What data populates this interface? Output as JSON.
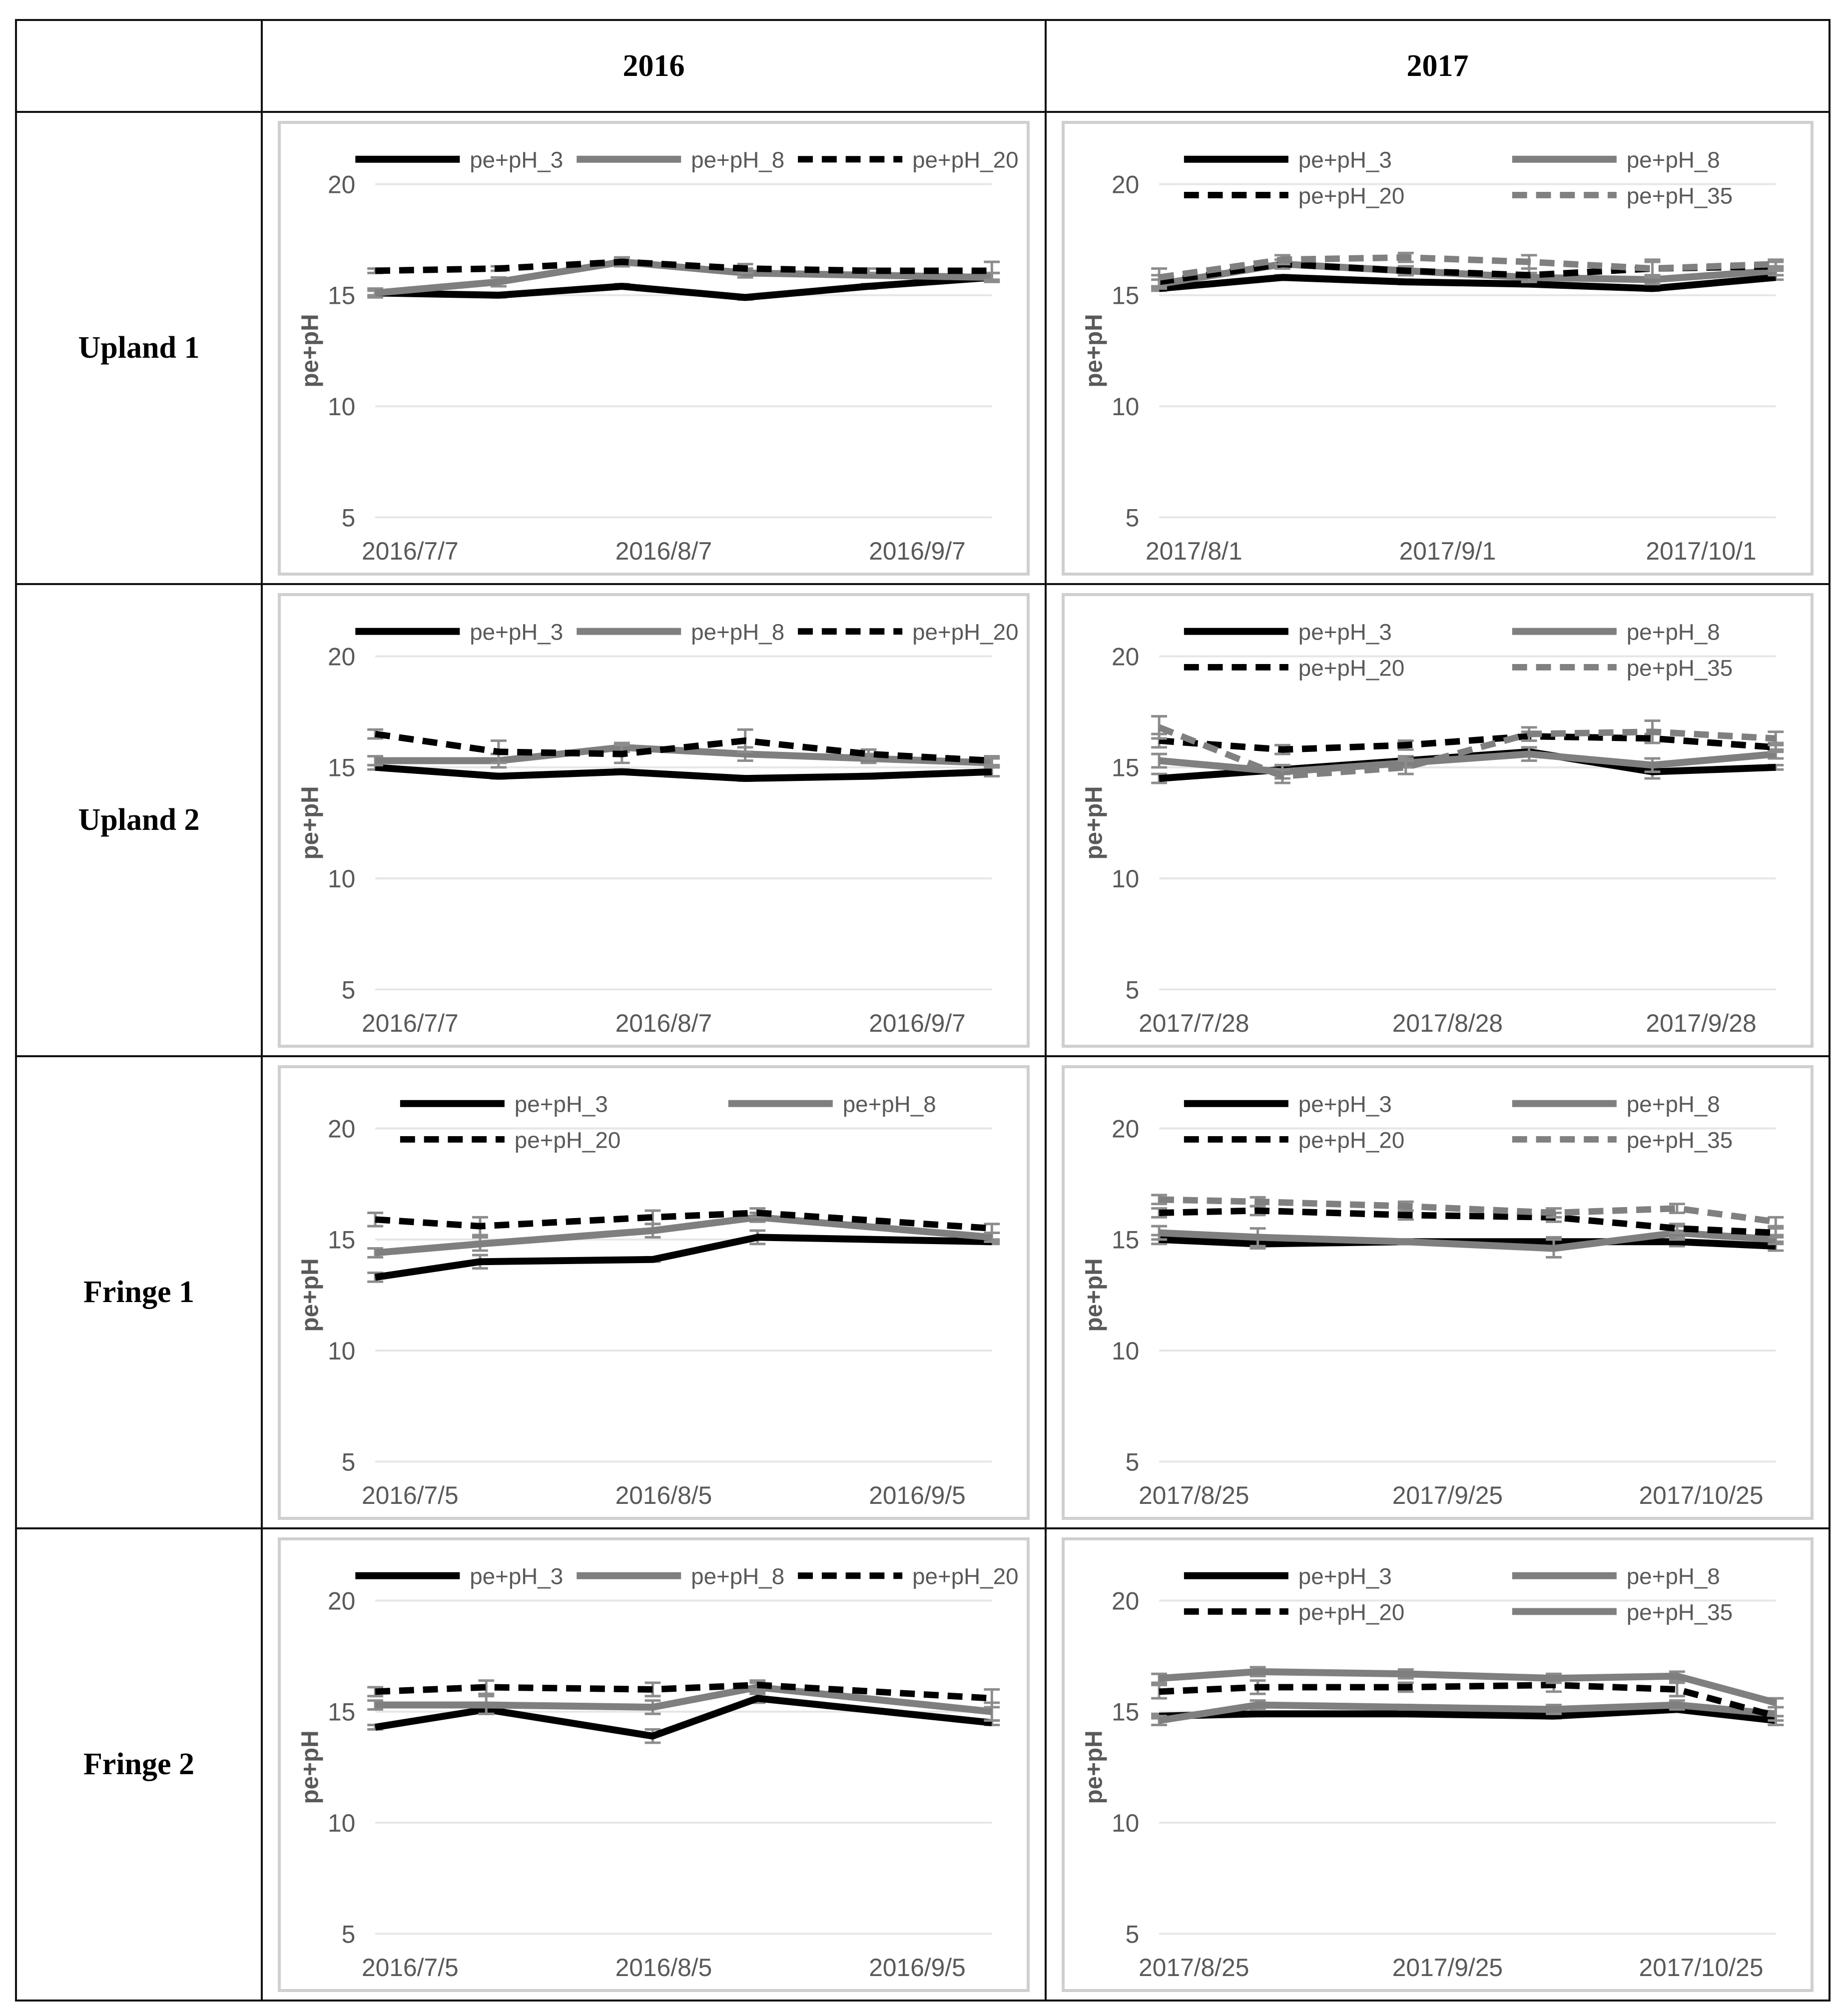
{
  "table": {
    "corner": "",
    "years": [
      "2016",
      "2017"
    ],
    "rows": [
      "Upland 1",
      "Upland 2",
      "Fringe 1",
      "Fringe 2"
    ]
  },
  "colors": {
    "pH_3": "#000000",
    "pH_8": "#7f7f7f",
    "pH_20": "#000000",
    "pH_35": "#808080",
    "grid": "#e6e6e6",
    "axis_text": "#595959",
    "frame": "#cfcfcf"
  },
  "chart_data": [
    {
      "id": "upland1-2016",
      "type": "line",
      "row": "Upland 1",
      "year": "2016",
      "ylabel": "pe+pH",
      "ylim": [
        5,
        20
      ],
      "yticks": [
        5,
        10,
        15,
        20
      ],
      "xticks": [
        "2016/7/7",
        "2016/8/7",
        "2016/9/7"
      ],
      "xrange": [
        0,
        100
      ],
      "legend_cols": 3,
      "series": [
        {
          "name": "pe+pH_3",
          "style": "solid-black",
          "x": [
            0,
            20,
            40,
            60,
            80,
            100
          ],
          "values": [
            15.1,
            15.0,
            15.4,
            14.9,
            15.4,
            15.8
          ],
          "err": [
            0.1,
            0.1,
            0.1,
            0.1,
            0.1,
            0.2
          ]
        },
        {
          "name": "pe+pH_8",
          "style": "solid-gray",
          "x": [
            0,
            20,
            40,
            60,
            80,
            100
          ],
          "values": [
            15.1,
            15.6,
            16.5,
            16.0,
            15.9,
            15.8
          ],
          "err": [
            0.2,
            0.2,
            0.2,
            0.2,
            0.1,
            0.2
          ]
        },
        {
          "name": "pe+pH_20",
          "style": "dash-black",
          "x": [
            0,
            20,
            40,
            60,
            80,
            100
          ],
          "values": [
            16.1,
            16.2,
            16.5,
            16.2,
            16.1,
            16.1
          ],
          "err": [
            0.1,
            0.1,
            0.2,
            0.2,
            0.1,
            0.4
          ]
        }
      ]
    },
    {
      "id": "upland1-2017",
      "type": "line",
      "row": "Upland 1",
      "year": "2017",
      "ylabel": "pe+pH",
      "ylim": [
        5,
        20
      ],
      "yticks": [
        5,
        10,
        15,
        20
      ],
      "xticks": [
        "2017/8/1",
        "2017/9/1",
        "2017/10/1"
      ],
      "xrange": [
        0,
        100
      ],
      "legend_cols": 2,
      "series": [
        {
          "name": "pe+pH_3",
          "style": "solid-black",
          "x": [
            0,
            20,
            40,
            60,
            80,
            100
          ],
          "values": [
            15.3,
            15.8,
            15.6,
            15.5,
            15.3,
            15.8
          ],
          "err": [
            0.1,
            0.1,
            0.1,
            0.1,
            0.1,
            0.1
          ]
        },
        {
          "name": "pe+pH_8",
          "style": "solid-gray",
          "x": [
            0,
            20,
            40,
            60,
            80,
            100
          ],
          "values": [
            15.5,
            16.4,
            16.1,
            15.8,
            15.7,
            16.1
          ],
          "err": [
            0.2,
            0.2,
            0.2,
            0.2,
            0.2,
            0.2
          ]
        },
        {
          "name": "pe+pH_20",
          "style": "dash-black",
          "x": [
            0,
            20,
            40,
            60,
            80,
            100
          ],
          "values": [
            15.6,
            16.4,
            16.1,
            15.9,
            16.2,
            16.3
          ],
          "err": [
            0.3,
            0.2,
            0.2,
            0.3,
            0.4,
            0.2
          ]
        },
        {
          "name": "pe+pH_35",
          "style": "dash-gray",
          "x": [
            0,
            20,
            40,
            60,
            80,
            100
          ],
          "values": [
            15.8,
            16.6,
            16.7,
            16.5,
            16.2,
            16.4
          ],
          "err": [
            0.4,
            0.2,
            0.2,
            0.3,
            0.3,
            0.2
          ]
        }
      ]
    },
    {
      "id": "upland2-2016",
      "type": "line",
      "row": "Upland 2",
      "year": "2016",
      "ylabel": "pe+pH",
      "ylim": [
        5,
        20
      ],
      "yticks": [
        5,
        10,
        15,
        20
      ],
      "xticks": [
        "2016/7/7",
        "2016/8/7",
        "2016/9/7"
      ],
      "xrange": [
        0,
        100
      ],
      "legend_cols": 3,
      "series": [
        {
          "name": "pe+pH_3",
          "style": "solid-black",
          "x": [
            0,
            20,
            40,
            60,
            80,
            100
          ],
          "values": [
            15.0,
            14.6,
            14.8,
            14.5,
            14.6,
            14.8
          ],
          "err": [
            0.1,
            0.1,
            0.1,
            0.1,
            0.1,
            0.2
          ]
        },
        {
          "name": "pe+pH_8",
          "style": "solid-gray",
          "x": [
            0,
            20,
            40,
            60,
            80,
            100
          ],
          "values": [
            15.3,
            15.3,
            15.9,
            15.6,
            15.4,
            15.2
          ],
          "err": [
            0.2,
            0.3,
            0.2,
            0.3,
            0.2,
            0.2
          ]
        },
        {
          "name": "pe+pH_20",
          "style": "dash-black",
          "x": [
            0,
            20,
            40,
            60,
            80,
            100
          ],
          "values": [
            16.5,
            15.7,
            15.6,
            16.2,
            15.6,
            15.3
          ],
          "err": [
            0.2,
            0.5,
            0.4,
            0.5,
            0.2,
            0.2
          ]
        }
      ]
    },
    {
      "id": "upland2-2017",
      "type": "line",
      "row": "Upland 2",
      "year": "2017",
      "ylabel": "pe+pH",
      "ylim": [
        5,
        20
      ],
      "yticks": [
        5,
        10,
        15,
        20
      ],
      "xticks": [
        "2017/7/28",
        "2017/8/28",
        "2017/9/28"
      ],
      "xrange": [
        0,
        100
      ],
      "legend_cols": 2,
      "series": [
        {
          "name": "pe+pH_3",
          "style": "solid-black",
          "x": [
            0,
            20,
            40,
            60,
            80,
            100
          ],
          "values": [
            14.5,
            14.9,
            15.3,
            15.7,
            14.8,
            15.0
          ],
          "err": [
            0.2,
            0.2,
            0.2,
            0.2,
            0.3,
            0.1
          ]
        },
        {
          "name": "pe+pH_8",
          "style": "solid-gray",
          "x": [
            0,
            20,
            40,
            60,
            80,
            100
          ],
          "values": [
            15.3,
            14.8,
            15.2,
            15.6,
            15.1,
            15.6
          ],
          "err": [
            0.3,
            0.3,
            0.2,
            0.3,
            0.3,
            0.2
          ]
        },
        {
          "name": "pe+pH_20",
          "style": "dash-black",
          "x": [
            0,
            20,
            40,
            60,
            80,
            100
          ],
          "values": [
            16.2,
            15.8,
            16.0,
            16.4,
            16.3,
            15.9
          ],
          "err": [
            0.3,
            0.2,
            0.2,
            0.2,
            0.2,
            0.2
          ]
        },
        {
          "name": "pe+pH_35",
          "style": "dash-gray",
          "x": [
            0,
            20,
            40,
            60,
            80,
            100
          ],
          "values": [
            16.8,
            14.6,
            15.0,
            16.5,
            16.6,
            16.3
          ],
          "err": [
            0.5,
            0.3,
            0.3,
            0.3,
            0.5,
            0.3
          ]
        }
      ]
    },
    {
      "id": "fringe1-2016",
      "type": "line",
      "row": "Fringe 1",
      "year": "2016",
      "ylabel": "pe+pH",
      "ylim": [
        5,
        20
      ],
      "yticks": [
        5,
        10,
        15,
        20
      ],
      "xticks": [
        "2016/7/5",
        "2016/8/5",
        "2016/9/5"
      ],
      "xrange": [
        0,
        100
      ],
      "legend_cols": 2,
      "series": [
        {
          "name": "pe+pH_3",
          "style": "solid-black",
          "x": [
            0,
            17,
            45,
            62,
            100
          ],
          "values": [
            13.3,
            14.0,
            14.1,
            15.1,
            14.9
          ],
          "err": [
            0.2,
            0.3,
            0.1,
            0.3,
            0.1
          ]
        },
        {
          "name": "pe+pH_8",
          "style": "solid-gray",
          "x": [
            0,
            17,
            45,
            62,
            100
          ],
          "values": [
            14.4,
            14.8,
            15.4,
            16.0,
            15.1
          ],
          "err": [
            0.2,
            0.3,
            0.3,
            0.2,
            0.2
          ]
        },
        {
          "name": "pe+pH_20",
          "style": "dash-black",
          "x": [
            0,
            17,
            45,
            62,
            100
          ],
          "values": [
            15.9,
            15.6,
            16.0,
            16.2,
            15.5
          ],
          "err": [
            0.3,
            0.4,
            0.3,
            0.2,
            0.2
          ]
        }
      ]
    },
    {
      "id": "fringe1-2017",
      "type": "line",
      "row": "Fringe 1",
      "year": "2017",
      "ylabel": "pe+pH",
      "ylim": [
        5,
        20
      ],
      "yticks": [
        5,
        10,
        15,
        20
      ],
      "xticks": [
        "2017/8/25",
        "2017/9/25",
        "2017/10/25"
      ],
      "xrange": [
        0,
        100
      ],
      "legend_cols": 2,
      "series": [
        {
          "name": "pe+pH_3",
          "style": "solid-black",
          "x": [
            0,
            16,
            40,
            64,
            84,
            100
          ],
          "values": [
            15.0,
            14.8,
            14.9,
            14.9,
            14.9,
            14.7
          ],
          "err": [
            0.2,
            0.2,
            0.1,
            0.2,
            0.2,
            0.2
          ]
        },
        {
          "name": "pe+pH_8",
          "style": "solid-gray",
          "x": [
            0,
            16,
            40,
            64,
            84,
            100
          ],
          "values": [
            15.3,
            15.1,
            14.9,
            14.6,
            15.3,
            15.0
          ],
          "err": [
            0.3,
            0.4,
            0.1,
            0.4,
            0.3,
            0.2
          ]
        },
        {
          "name": "pe+pH_20",
          "style": "dash-black",
          "x": [
            0,
            16,
            40,
            64,
            84,
            100
          ],
          "values": [
            16.2,
            16.3,
            16.1,
            16.0,
            15.5,
            15.3
          ],
          "err": [
            0.2,
            0.2,
            0.2,
            0.2,
            0.2,
            0.2
          ]
        },
        {
          "name": "pe+pH_35",
          "style": "dash-gray",
          "x": [
            0,
            16,
            40,
            64,
            84,
            100
          ],
          "values": [
            16.8,
            16.7,
            16.5,
            16.2,
            16.4,
            15.8
          ],
          "err": [
            0.2,
            0.2,
            0.2,
            0.2,
            0.2,
            0.2
          ]
        }
      ]
    },
    {
      "id": "fringe2-2016",
      "type": "line",
      "row": "Fringe 2",
      "year": "2016",
      "ylabel": "pe+pH",
      "ylim": [
        5,
        20
      ],
      "yticks": [
        5,
        10,
        15,
        20
      ],
      "xticks": [
        "2016/7/5",
        "2016/8/5",
        "2016/9/5"
      ],
      "xrange": [
        0,
        100
      ],
      "legend_cols": 3,
      "series": [
        {
          "name": "pe+pH_3",
          "style": "solid-black",
          "x": [
            0,
            18,
            45,
            62,
            100
          ],
          "values": [
            14.3,
            15.1,
            13.9,
            15.6,
            14.5
          ],
          "err": [
            0.1,
            0.2,
            0.3,
            0.2,
            0.1
          ]
        },
        {
          "name": "pe+pH_8",
          "style": "solid-gray",
          "x": [
            0,
            18,
            45,
            62,
            100
          ],
          "values": [
            15.3,
            15.3,
            15.2,
            16.1,
            15.0
          ],
          "err": [
            0.2,
            0.4,
            0.3,
            0.2,
            0.4
          ]
        },
        {
          "name": "pe+pH_20",
          "style": "dash-black",
          "x": [
            0,
            18,
            45,
            62,
            100
          ],
          "values": [
            15.9,
            16.1,
            16.0,
            16.2,
            15.6
          ],
          "err": [
            0.2,
            0.3,
            0.3,
            0.2,
            0.4
          ]
        }
      ]
    },
    {
      "id": "fringe2-2017",
      "type": "line",
      "row": "Fringe 2",
      "year": "2017",
      "ylabel": "pe+pH",
      "ylim": [
        5,
        20
      ],
      "yticks": [
        5,
        10,
        15,
        20
      ],
      "xticks": [
        "2017/8/25",
        "2017/9/25",
        "2017/10/25"
      ],
      "xrange": [
        0,
        100
      ],
      "legend_cols": 2,
      "series": [
        {
          "name": "pe+pH_3",
          "style": "solid-black",
          "x": [
            0,
            16,
            40,
            64,
            84,
            100
          ],
          "values": [
            14.8,
            14.9,
            14.9,
            14.8,
            15.1,
            14.6
          ],
          "err": [
            0.1,
            0.1,
            0.1,
            0.1,
            0.1,
            0.2
          ]
        },
        {
          "name": "pe+pH_8",
          "style": "solid-gray",
          "x": [
            0,
            16,
            40,
            64,
            84,
            100
          ],
          "values": [
            14.6,
            15.3,
            15.2,
            15.1,
            15.3,
            14.9
          ],
          "err": [
            0.2,
            0.2,
            0.1,
            0.2,
            0.2,
            0.3
          ]
        },
        {
          "name": "pe+pH_20",
          "style": "dash-black",
          "x": [
            0,
            16,
            40,
            64,
            84,
            100
          ],
          "values": [
            15.9,
            16.1,
            16.1,
            16.2,
            16.0,
            14.8
          ],
          "err": [
            0.3,
            0.3,
            0.2,
            0.3,
            0.3,
            0.4
          ]
        },
        {
          "name": "pe+pH_35",
          "style": "solid-gray",
          "x": [
            0,
            16,
            40,
            64,
            84,
            100
          ],
          "values": [
            16.5,
            16.8,
            16.7,
            16.5,
            16.6,
            15.4
          ],
          "err": [
            0.2,
            0.2,
            0.2,
            0.2,
            0.2,
            0.2
          ]
        }
      ]
    }
  ]
}
